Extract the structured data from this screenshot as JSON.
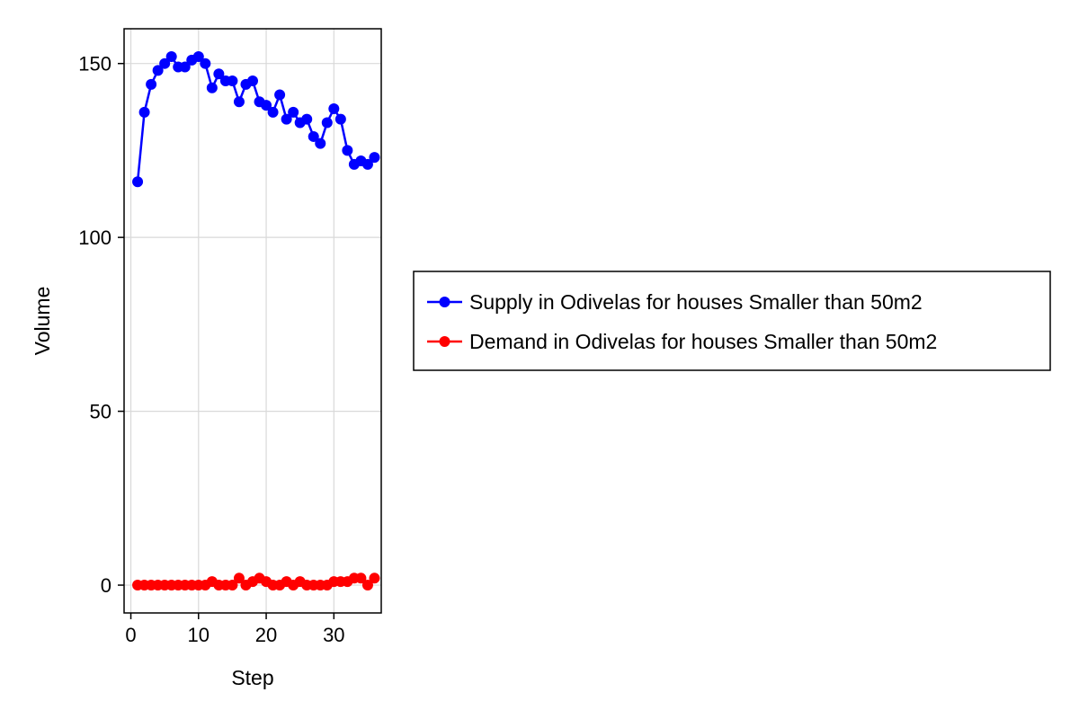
{
  "chart_data": {
    "type": "line",
    "xlabel": "Step",
    "ylabel": "Volume",
    "xlim": [
      -1,
      37
    ],
    "ylim": [
      -8,
      160
    ],
    "xticks": [
      0,
      10,
      20,
      30
    ],
    "yticks": [
      0,
      50,
      100,
      150
    ],
    "grid": true,
    "legend_position": "right",
    "x": [
      1,
      2,
      3,
      4,
      5,
      6,
      7,
      8,
      9,
      10,
      11,
      12,
      13,
      14,
      15,
      16,
      17,
      18,
      19,
      20,
      21,
      22,
      23,
      24,
      25,
      26,
      27,
      28,
      29,
      30,
      31,
      32,
      33,
      34,
      35,
      36
    ],
    "series": [
      {
        "name": "Supply in Odivelas for houses Smaller than 50m2",
        "color": "#0000ff",
        "marker": "circle",
        "values": [
          116,
          136,
          144,
          148,
          150,
          152,
          149,
          149,
          151,
          152,
          150,
          143,
          147,
          145,
          145,
          139,
          144,
          145,
          139,
          138,
          136,
          141,
          134,
          136,
          133,
          134,
          129,
          127,
          133,
          137,
          134,
          125,
          121,
          122,
          121,
          123
        ]
      },
      {
        "name": "Demand in Odivelas for houses Smaller than 50m2",
        "color": "#ff0000",
        "marker": "circle",
        "values": [
          0,
          0,
          0,
          0,
          0,
          0,
          0,
          0,
          0,
          0,
          0,
          1,
          0,
          0,
          0,
          2,
          0,
          1,
          2,
          1,
          0,
          0,
          1,
          0,
          1,
          0,
          0,
          0,
          0,
          1,
          1,
          1,
          2,
          2,
          0,
          2
        ]
      }
    ]
  }
}
